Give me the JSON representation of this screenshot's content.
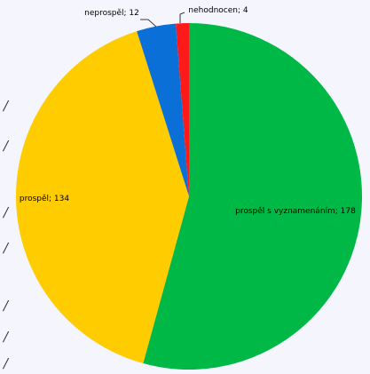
{
  "chart_data": {
    "type": "pie",
    "title": "",
    "slices": [
      {
        "name": "prospěl s vyznamenáním",
        "value": 178,
        "color": "#00b846",
        "label": "prospěl s vyznamenáním; 178"
      },
      {
        "name": "prospěl",
        "value": 134,
        "color": "#ffcc00",
        "label": "prospěl; 134"
      },
      {
        "name": "neprospěl",
        "value": 12,
        "color": "#0a6fd6",
        "label": "neprospěl; 12"
      },
      {
        "name": "nehodnocen",
        "value": 4,
        "color": "#ff1a1a",
        "label": "nehodnocen; 4"
      }
    ],
    "legend": "none",
    "start_angle": "12 o'clock",
    "direction": "clockwise"
  }
}
